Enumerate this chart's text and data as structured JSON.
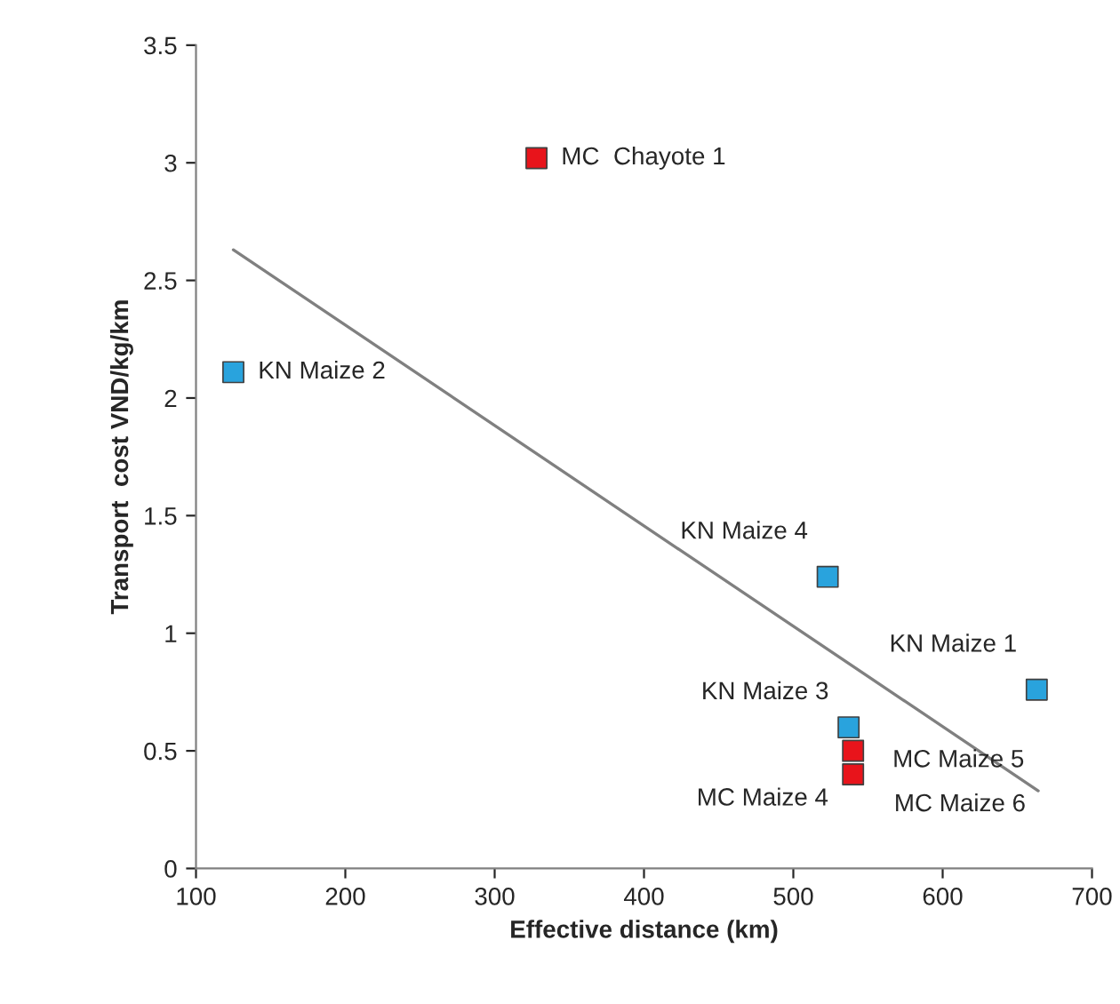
{
  "chart_data": {
    "type": "scatter",
    "xlabel": "Effective distance (km)",
    "ylabel": "Transport  cost VND/kg/km",
    "series": [
      {
        "color": "#29a3dd",
        "x": [
          125,
          523,
          663,
          537
        ],
        "values": [
          2.11,
          1.24,
          0.76,
          0.6
        ]
      },
      {
        "color": "#e8141b",
        "x": [
          328,
          540,
          540
        ],
        "values": [
          3.02,
          0.5,
          0.4
        ]
      },
      {
        "type": "line",
        "marker": "none",
        "color": "#808080",
        "x": [
          125,
          664
        ],
        "values": [
          2.63,
          0.33
        ]
      }
    ],
    "annotations": [
      {
        "text": "MC  Chayote 1",
        "x": 328,
        "y": 3.02
      },
      {
        "text": "KN Maize 2",
        "x": 125,
        "y": 2.11
      },
      {
        "text": "KN Maize 4",
        "x": 523,
        "y": 1.24
      },
      {
        "text": "KN Maize 1",
        "x": 663,
        "y": 0.76
      },
      {
        "text": "KN Maize 3",
        "x": 537,
        "y": 0.6
      },
      {
        "text": "MC Maize 5",
        "x": 540,
        "y": 0.5
      },
      {
        "text": "MC Maize 6",
        "x": 541,
        "y": 0.48
      },
      {
        "text": "MC Maize 4",
        "x": 540,
        "y": 0.4
      }
    ],
    "xlim": [
      100,
      700
    ],
    "xticks": [
      100,
      200,
      300,
      400,
      500,
      600,
      700
    ],
    "ylim": [
      0,
      3.5
    ],
    "yticks": [
      0,
      0.5,
      1,
      1.5,
      2,
      2.5,
      3,
      3.5
    ],
    "marker": "square",
    "grid": false,
    "legend": false
  }
}
